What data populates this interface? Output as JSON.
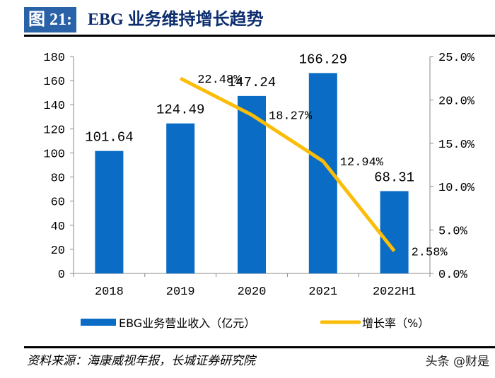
{
  "header": {
    "figure_no": "图 21:",
    "title": "EBG 业务维持增长趋势"
  },
  "chart_data": {
    "type": "bar+line",
    "categories": [
      "2018",
      "2019",
      "2020",
      "2021",
      "2022H1"
    ],
    "series": [
      {
        "name": "EBG业务营业收入（亿元）",
        "type": "bar",
        "axis": "left",
        "color": "#0a6cc4",
        "values": [
          101.64,
          124.49,
          147.24,
          166.29,
          68.31
        ],
        "labels": [
          "101.64",
          "124.49",
          "147.24",
          "166.29",
          "68.31"
        ]
      },
      {
        "name": "增长率（%）",
        "type": "line",
        "axis": "right",
        "color": "#fbbd08",
        "values": [
          null,
          22.48,
          18.27,
          12.94,
          2.58
        ],
        "labels": [
          "",
          "22.48%",
          "18.27%",
          "12.94%",
          "2.58%"
        ]
      }
    ],
    "y_left": {
      "lim": [
        0,
        180
      ],
      "ticks": [
        "0",
        "20",
        "40",
        "60",
        "80",
        "100",
        "120",
        "140",
        "160",
        "180"
      ]
    },
    "y_right": {
      "lim": [
        0,
        25
      ],
      "ticks": [
        "0.0%",
        "5.0%",
        "10.0%",
        "15.0%",
        "20.0%",
        "25.0%"
      ]
    },
    "grid": false,
    "legend": "bottom"
  },
  "footer": {
    "source": "资料来源：海康威视年报，长城证券研究院",
    "watermark": "头条 @财是"
  }
}
